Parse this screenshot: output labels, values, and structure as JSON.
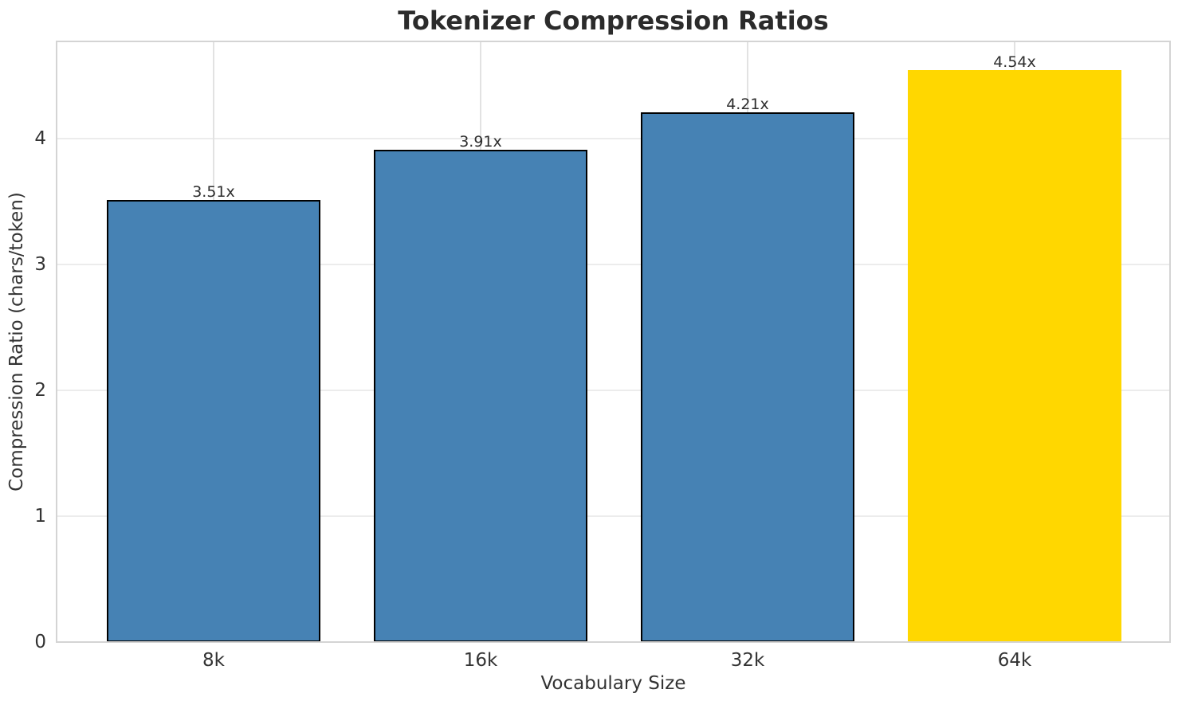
{
  "chart_data": {
    "type": "bar",
    "title": "Tokenizer Compression Ratios",
    "xlabel": "Vocabulary Size",
    "ylabel": "Compression Ratio (chars/token)",
    "categories": [
      "8k",
      "16k",
      "32k",
      "64k"
    ],
    "values": [
      3.51,
      3.91,
      4.21,
      4.54
    ],
    "bar_labels": [
      "3.51x",
      "3.91x",
      "4.21x",
      "4.54x"
    ],
    "yticks": [
      "0",
      "1",
      "2",
      "3",
      "4"
    ],
    "ylim": [
      0,
      4.77
    ],
    "grid": true,
    "legend": "none",
    "highlight_index": 3,
    "colors": {
      "bar_default": "#4682B4",
      "bar_highlight": "#FFD700",
      "bar_edge": "#000000",
      "grid_h": "#ececec",
      "grid_v": "#e2e2e2",
      "spine": "#d4d4d4",
      "title_text": "#2b2b2b",
      "label_text": "#333333",
      "annotation_text": "#2e2e2e"
    }
  }
}
